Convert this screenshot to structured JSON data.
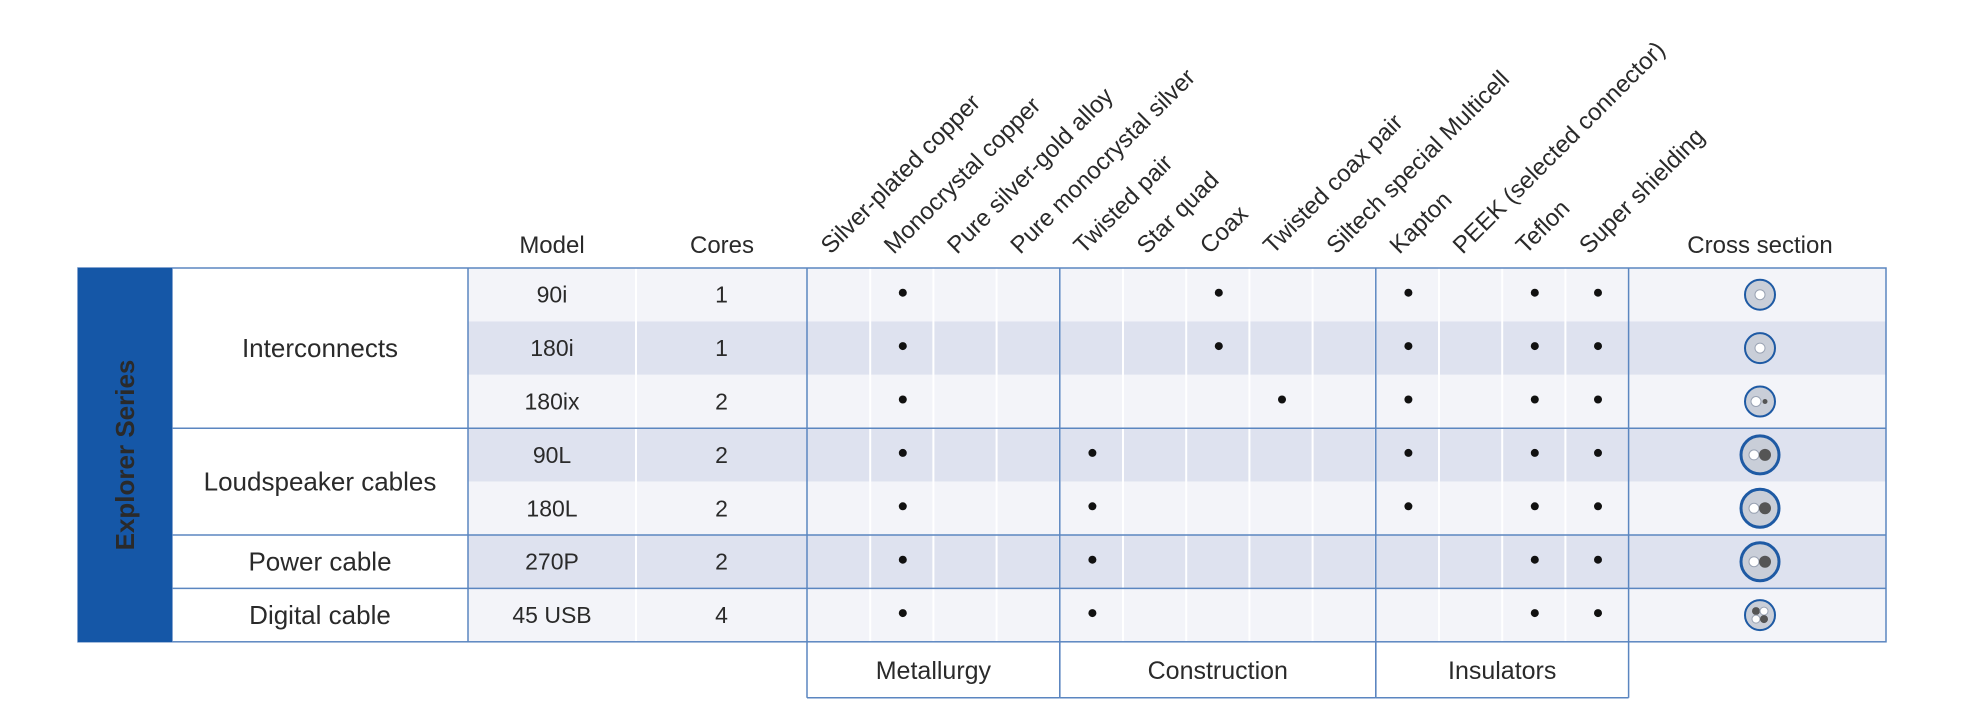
{
  "series_label": "Explorer Series",
  "headers": {
    "model": "Model",
    "cores": "Cores",
    "cross_section": "Cross section"
  },
  "feature_columns": [
    "Silver-plated copper",
    "Monocrystal copper",
    "Pure silver-gold alloy",
    "Pure monocrystal silver",
    "Twisted pair",
    "Star quad",
    "Coax",
    "Twisted coax pair",
    "Siltech special Multicell",
    "Kapton",
    "PEEK (selected connector)",
    "Teflon",
    "Super shielding"
  ],
  "groups": [
    {
      "label": "Metallurgy",
      "columns": [
        0,
        3
      ]
    },
    {
      "label": "Construction",
      "columns": [
        4,
        8
      ]
    },
    {
      "label": "Insulators",
      "columns": [
        9,
        12
      ]
    }
  ],
  "categories": [
    {
      "label": "Interconnects",
      "rows": [
        0,
        2
      ]
    },
    {
      "label": "Loudspeaker cables",
      "rows": [
        3,
        4
      ]
    },
    {
      "label": "Power cable",
      "rows": [
        5,
        5
      ]
    },
    {
      "label": "Digital cable",
      "rows": [
        6,
        6
      ]
    }
  ],
  "rows": [
    {
      "model": "90i",
      "cores": "1",
      "features": [
        1,
        6,
        9,
        11,
        12
      ],
      "cross_section": "single-core-coax-icon"
    },
    {
      "model": "180i",
      "cores": "1",
      "features": [
        1,
        6,
        9,
        11,
        12
      ],
      "cross_section": "single-core-coax-icon"
    },
    {
      "model": "180ix",
      "cores": "2",
      "features": [
        1,
        7,
        9,
        11,
        12
      ],
      "cross_section": "twin-core-coax-icon"
    },
    {
      "model": "90L",
      "cores": "2",
      "features": [
        1,
        4,
        9,
        11,
        12
      ],
      "cross_section": "large-twin-core-icon"
    },
    {
      "model": "180L",
      "cores": "2",
      "features": [
        1,
        4,
        9,
        11,
        12
      ],
      "cross_section": "large-twin-core-icon"
    },
    {
      "model": "270P",
      "cores": "2",
      "features": [
        1,
        4,
        11,
        12
      ],
      "cross_section": "large-twin-core-icon"
    },
    {
      "model": "45 USB",
      "cores": "4",
      "features": [
        1,
        4,
        11,
        12
      ],
      "cross_section": "quad-core-icon"
    }
  ],
  "colors": {
    "series_band": "#1557a7",
    "row_light": "#f3f4f9",
    "row_dark": "#dee2ef",
    "border": "#5b86c0",
    "icon_fill": "#c9ced8",
    "icon_ring": "#1e5aa4"
  }
}
